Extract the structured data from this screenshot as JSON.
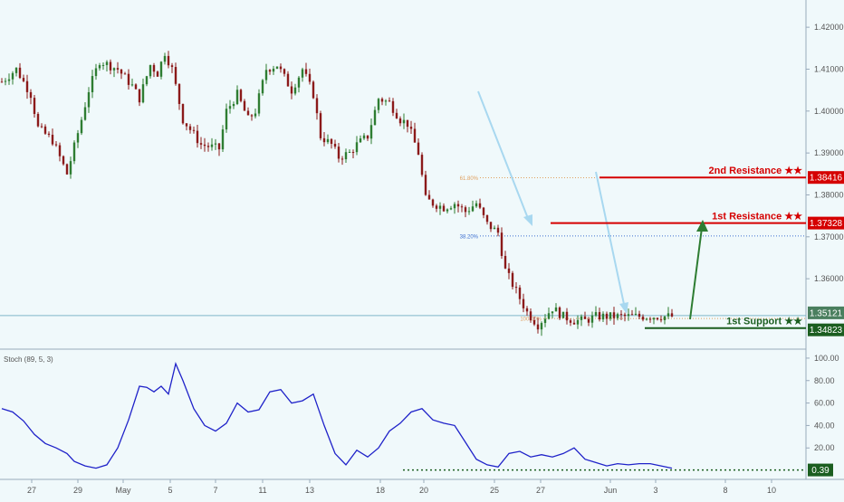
{
  "colors": {
    "background": "#f0f9fb",
    "up": "#2e7d32",
    "down": "#8b1a1a",
    "resistance": "#d50000",
    "support": "#1b5e20",
    "stoch": "#1f22c9",
    "fib_orange": "#e0a060",
    "fib_blue": "#3c6fd0",
    "arrow_blue": "#a8d8f0",
    "arrow_green": "#2e7d32",
    "axis_text": "#555555"
  },
  "x_axis": {
    "labels": [
      "27",
      "29",
      "May",
      "5",
      "7",
      "11",
      "13",
      "18",
      "20",
      "25",
      "27",
      "Jun",
      "3",
      "8",
      "10"
    ]
  },
  "price_axis": {
    "ticks": [
      "1.42000",
      "1.41000",
      "1.40000",
      "1.39000",
      "1.38000",
      "1.37000",
      "1.36000"
    ]
  },
  "stoch_axis": {
    "ticks": [
      "100.00",
      "80.00",
      "60.00",
      "40.00",
      "20.00"
    ]
  },
  "levels": [
    {
      "name": "2nd Resistance ★★",
      "value": "1.38416",
      "kind": "resistance"
    },
    {
      "name": "1st Resistance ★★",
      "value": "1.37328",
      "kind": "resistance"
    },
    {
      "name": "1st Support ★★",
      "value": "1.34823",
      "kind": "support"
    }
  ],
  "current_price": "1.35121",
  "stoch_value": "0.39",
  "fib": [
    {
      "label": "61.80%",
      "price": 1.3841
    },
    {
      "label": "38.20%",
      "price": 1.3702
    },
    {
      "label": "100.00%",
      "price": 1.3505
    }
  ],
  "indicator_label": "Stoch (89, 5, 3)",
  "chart_data": {
    "type": "candlestick",
    "price_axis_range": [
      1.3432,
      1.4265
    ],
    "stoch_axis_range": [
      -8,
      108
    ],
    "series": [
      {
        "name": "close",
        "x_index": [
          0,
          4,
          8,
          10,
          14,
          18,
          22,
          24,
          27,
          32,
          36,
          38,
          41,
          43,
          45,
          47,
          50,
          55,
          60,
          62,
          65,
          68,
          70,
          73,
          76,
          78,
          80,
          83,
          86,
          88,
          91,
          93,
          96,
          98,
          101,
          104,
          107,
          110,
          112,
          115,
          117,
          119,
          122,
          125,
          128,
          131,
          134,
          137,
          139,
          142,
          145,
          148,
          152,
          155,
          158,
          161,
          164,
          167,
          170,
          173,
          176,
          179,
          182,
          185
        ],
        "values": [
          1.407,
          1.41,
          1.404,
          1.396,
          1.393,
          1.385,
          1.398,
          1.405,
          1.412,
          1.41,
          1.406,
          1.403,
          1.411,
          1.409,
          1.414,
          1.41,
          1.398,
          1.392,
          1.391,
          1.4,
          1.404,
          1.398,
          1.4,
          1.41,
          1.411,
          1.408,
          1.405,
          1.41,
          1.404,
          1.394,
          1.392,
          1.389,
          1.39,
          1.392,
          1.394,
          1.403,
          1.402,
          1.398,
          1.397,
          1.39,
          1.379,
          1.378,
          1.377,
          1.378,
          1.376,
          1.378,
          1.373,
          1.371,
          1.362,
          1.357,
          1.352,
          1.349,
          1.353,
          1.351,
          1.35,
          1.35,
          1.351,
          1.351,
          1.351,
          1.351,
          1.351,
          1.351,
          1.351,
          1.351
        ]
      },
      {
        "name": "stoch",
        "x_index": [
          0,
          3,
          6,
          9,
          12,
          15,
          18,
          20,
          23,
          26,
          29,
          32,
          35,
          38,
          40,
          42,
          44,
          46,
          48,
          50,
          53,
          56,
          59,
          62,
          65,
          68,
          71,
          74,
          77,
          80,
          83,
          86,
          89,
          92,
          95,
          98,
          101,
          104,
          107,
          110,
          113,
          116,
          119,
          122,
          125,
          128,
          131,
          134,
          137,
          140,
          143,
          146,
          149,
          152,
          155,
          158,
          161,
          164,
          167,
          170,
          173,
          176,
          179,
          182,
          185
        ],
        "values": [
          55,
          52,
          44,
          32,
          24,
          20,
          15,
          8,
          4,
          2,
          5,
          20,
          45,
          75,
          74,
          70,
          75,
          68,
          95,
          80,
          55,
          40,
          35,
          42,
          60,
          52,
          54,
          70,
          72,
          60,
          62,
          68,
          40,
          15,
          5,
          18,
          12,
          20,
          35,
          42,
          52,
          55,
          45,
          42,
          40,
          25,
          10,
          5,
          3,
          15,
          17,
          12,
          14,
          12,
          15,
          20,
          10,
          7,
          4,
          6,
          5,
          6,
          6,
          4,
          2
        ]
      }
    ]
  }
}
